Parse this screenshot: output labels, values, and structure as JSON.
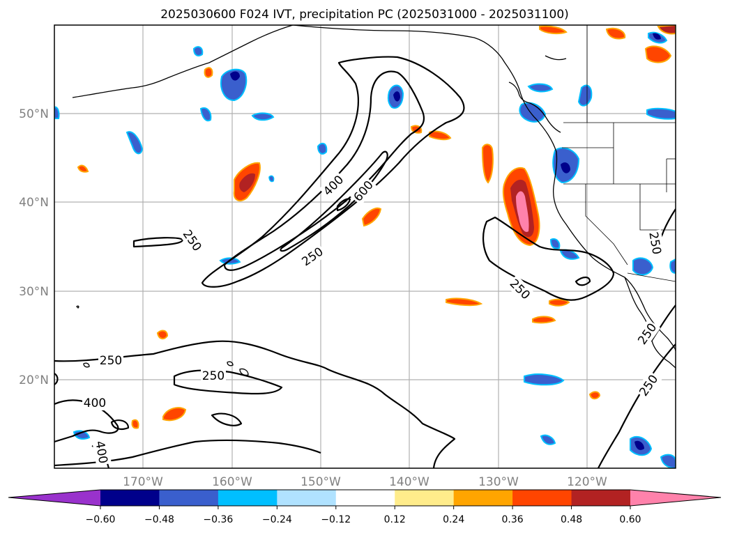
{
  "title": "2025030600 F024 IVT, precipitation PC (2025031000 - 2025031100)",
  "lon_labels": [
    "170°W",
    "160°W",
    "150°W",
    "140°W",
    "130°W",
    "120°W"
  ],
  "lat_labels": [
    "50°N",
    "40°N",
    "30°N",
    "20°N"
  ],
  "map_extent": {
    "lon": [
      -180,
      -110
    ],
    "lat": [
      10,
      60
    ]
  },
  "contour_labels": [
    "250",
    "250",
    "250",
    "250",
    "250",
    "250",
    "250",
    "400",
    "400",
    "400",
    "600",
    "250"
  ],
  "colorbar": {
    "ticks": [
      "−0.60",
      "−0.48",
      "−0.36",
      "−0.24",
      "−0.12",
      "0.12",
      "0.24",
      "0.36",
      "0.48",
      "0.60"
    ],
    "colors": [
      "#9932cc",
      "#00008b",
      "#3a5fcd",
      "#00bfff",
      "#b0e2ff",
      "#ffffff",
      "#ffec8b",
      "#ffa500",
      "#ff4500",
      "#b22222",
      "#ff82ab"
    ]
  }
}
